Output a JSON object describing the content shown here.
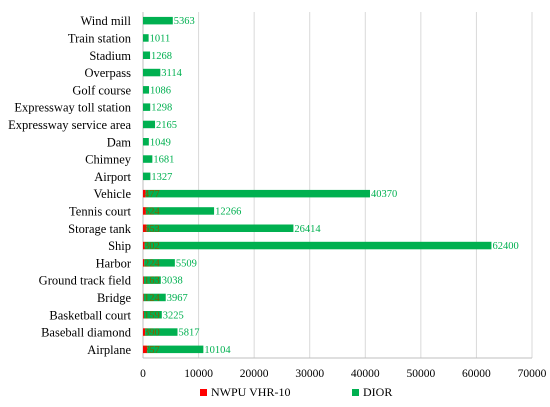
{
  "colors": {
    "nwpu": "#ff0000",
    "dior": "#00b050",
    "grid": "#d9d9d9",
    "axis": "#bfbfbf",
    "nwpu_label": "#7f6000",
    "dior_label": "#00b050"
  },
  "chart_data": {
    "type": "bar",
    "orientation": "horizontal",
    "stacked": true,
    "title": "",
    "xlabel": "",
    "ylabel": "",
    "xlim": [
      0,
      70000
    ],
    "xticks": [
      "0",
      "10000",
      "20000",
      "30000",
      "40000",
      "50000",
      "60000",
      "70000"
    ],
    "xtick_values": [
      0,
      10000,
      20000,
      30000,
      40000,
      50000,
      60000,
      70000
    ],
    "grid": true,
    "legend_position": "bottom",
    "categories": [
      "Wind mill",
      "Train station",
      "Stadium",
      "Overpass",
      "Golf course",
      "Expressway toll station",
      "Expressway service area",
      "Dam",
      "Chimney",
      "Airport",
      "Vehicle",
      "Tennis court",
      "Storage tank",
      "Ship",
      "Harbor",
      "Ground track field",
      "Bridge",
      "Basketball court",
      "Baseball diamond",
      "Airplane"
    ],
    "series": [
      {
        "name": "NWPU VHR-10",
        "values": [
          null,
          null,
          null,
          null,
          null,
          null,
          null,
          null,
          null,
          null,
          477,
          524,
          653,
          302,
          224,
          163,
          124,
          159,
          390,
          757
        ],
        "labels": [
          "",
          "",
          "",
          "",
          "",
          "",
          "",
          "",
          "",
          "",
          "477",
          "524",
          "653",
          "302",
          "224",
          "163",
          "124",
          "159",
          "390",
          "757"
        ]
      },
      {
        "name": "DIOR",
        "values": [
          5363,
          1011,
          1268,
          3114,
          1086,
          1298,
          2165,
          1049,
          1681,
          1327,
          40370,
          12266,
          26414,
          62400,
          5509,
          3038,
          3967,
          3225,
          5817,
          10104
        ],
        "labels": [
          "5363",
          "1011",
          "1268",
          "3114",
          "1086",
          "1298",
          "2165",
          "1049",
          "1681",
          "1327",
          "40370",
          "12266",
          "26414",
          "62400",
          "5509",
          "3038",
          "3967",
          "3225",
          "5817",
          "10104"
        ]
      }
    ]
  }
}
